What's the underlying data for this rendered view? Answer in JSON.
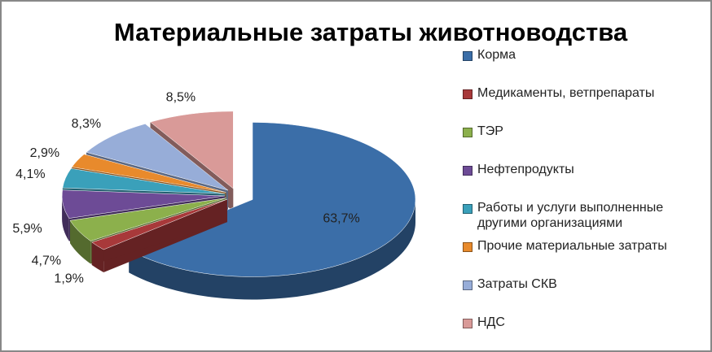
{
  "chart_data": {
    "type": "pie3d",
    "title": "Материальные затраты животноводства",
    "categories": [
      "Корма",
      "Медикаменты, ветпрепараты",
      "ТЭР",
      "Нефтепродукты",
      "Работы и услуги выполненные другими организациями",
      "Прочие материальные затраты",
      "Затраты СКВ",
      "НДС"
    ],
    "values": [
      63.7,
      1.9,
      4.7,
      5.9,
      4.1,
      2.9,
      8.3,
      8.5
    ],
    "value_labels": [
      "63,7%",
      "1,9%",
      "4,7%",
      "5,9%",
      "4,1%",
      "2,9%",
      "8,3%",
      "8,5%"
    ],
    "colors": [
      "#3b6ea8",
      "#a8393a",
      "#8cb04c",
      "#6d4b96",
      "#3aa0ba",
      "#e88a2c",
      "#97add8",
      "#d99a98"
    ],
    "legend": "right"
  }
}
